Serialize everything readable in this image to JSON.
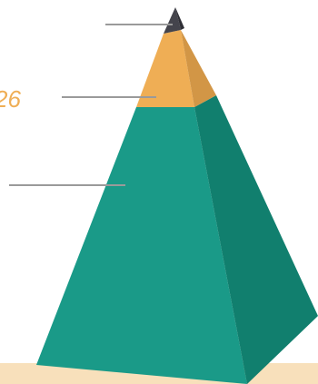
{
  "diagram": {
    "type": "pyramid",
    "tiers": [
      {
        "label": "",
        "face_color": "#44444c",
        "side_color": "#2f2f36"
      },
      {
        "label": "26",
        "face_color": "#efae55",
        "side_color": "#d29646"
      },
      {
        "label": "",
        "face_color": "#1a9a88",
        "side_color": "#117f6e"
      }
    ],
    "base_color": "#f8e0bb",
    "leader_color": "#9a9a9a",
    "label_color": "#efae55"
  }
}
